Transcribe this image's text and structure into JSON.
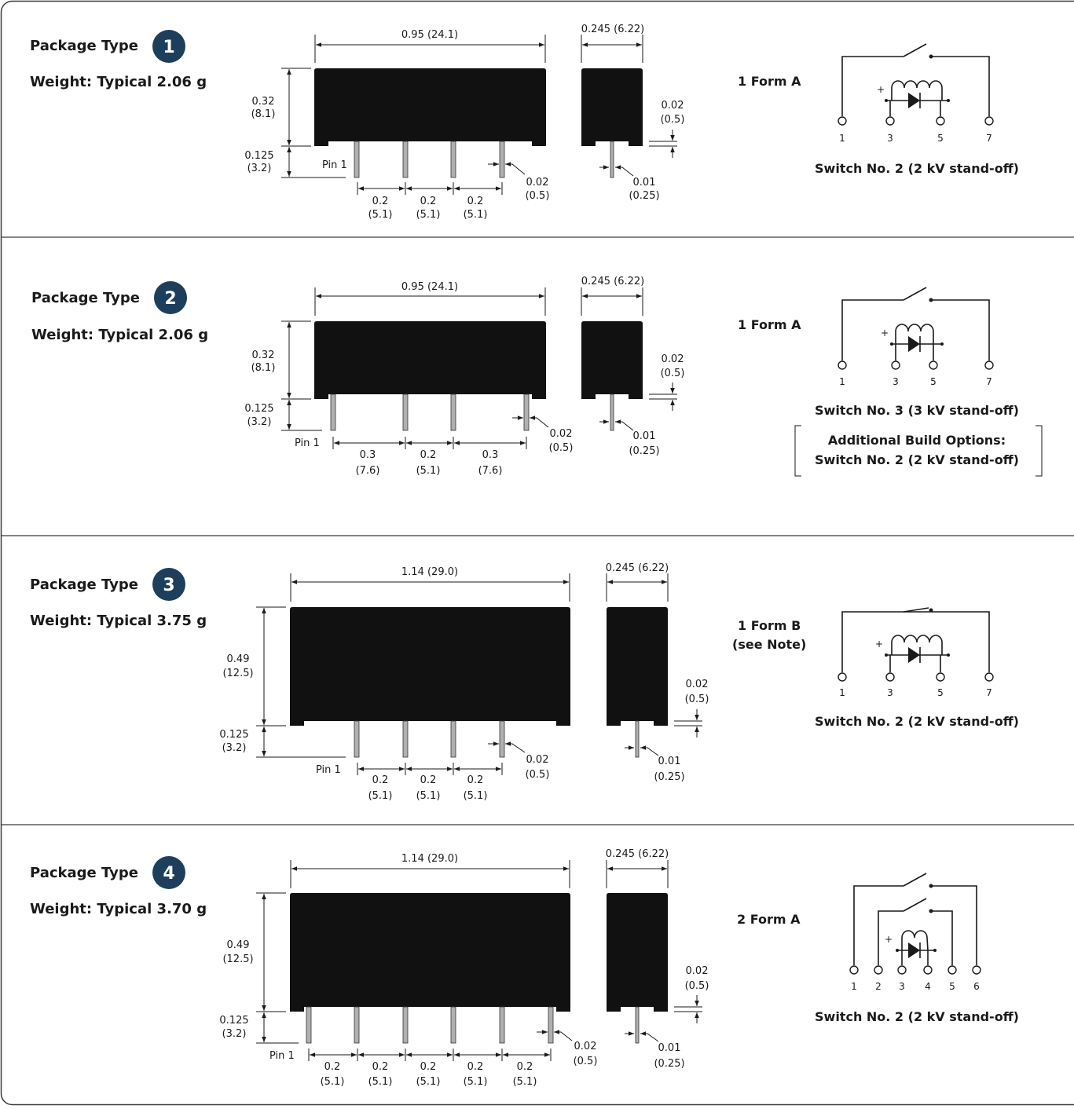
{
  "packages": [
    {
      "heading": "Package Type",
      "number": "1",
      "weight": "Weight: Typical 2.06 g",
      "dims": {
        "length": "0.95 (24.1)",
        "width": "0.245 (6.22)",
        "height_in": "0.32",
        "height_mm": "(8.1)",
        "lead_in": "0.125",
        "lead_mm": "(3.2)",
        "standoff_in": "0.02",
        "standoff_mm": "(0.5)",
        "pin_in": "0.02",
        "pin_mm": "(0.5)",
        "thick_in": "0.01",
        "thick_mm": "(0.25)",
        "pin1": "Pin 1"
      },
      "spacings": [
        {
          "in": "0.2",
          "mm": "(5.1)"
        },
        {
          "in": "0.2",
          "mm": "(5.1)"
        },
        {
          "in": "0.2",
          "mm": "(5.1)"
        }
      ],
      "form": [
        "1 Form A"
      ],
      "pins": [
        "1",
        "3",
        "5",
        "7"
      ],
      "switch": "Switch No. 2 (2 kV stand-off)",
      "options": []
    },
    {
      "heading": "Package Type",
      "number": "2",
      "weight": "Weight: Typical 2.06 g",
      "dims": {
        "length": "0.95 (24.1)",
        "width": "0.245 (6.22)",
        "height_in": "0.32",
        "height_mm": "(8.1)",
        "lead_in": "0.125",
        "lead_mm": "(3.2)",
        "standoff_in": "0.02",
        "standoff_mm": "(0.5)",
        "pin_in": "0.02",
        "pin_mm": "(0.5)",
        "thick_in": "0.01",
        "thick_mm": "(0.25)",
        "pin1": "Pin 1"
      },
      "spacings": [
        {
          "in": "0.3",
          "mm": "(7.6)"
        },
        {
          "in": "0.2",
          "mm": "(5.1)"
        },
        {
          "in": "0.3",
          "mm": "(7.6)"
        }
      ],
      "form": [
        "1 Form A"
      ],
      "pins": [
        "1",
        "3",
        "5",
        "7"
      ],
      "switch": "Switch No. 3 (3 kV stand-off)",
      "options": [
        "Additional Build Options:",
        "Switch No. 2 (2 kV stand-off)"
      ]
    },
    {
      "heading": "Package Type",
      "number": "3",
      "weight": "Weight: Typical 3.75 g",
      "dims": {
        "length": "1.14 (29.0)",
        "width": "0.245 (6.22)",
        "height_in": "0.49",
        "height_mm": "(12.5)",
        "lead_in": "0.125",
        "lead_mm": "(3.2)",
        "standoff_in": "0.02",
        "standoff_mm": "(0.5)",
        "pin_in": "0.02",
        "pin_mm": "(0.5)",
        "thick_in": "0.01",
        "thick_mm": "(0.25)",
        "pin1": "Pin 1"
      },
      "spacings": [
        {
          "in": "0.2",
          "mm": "(5.1)"
        },
        {
          "in": "0.2",
          "mm": "(5.1)"
        },
        {
          "in": "0.2",
          "mm": "(5.1)"
        }
      ],
      "form": [
        "1 Form B",
        "(see Note)"
      ],
      "pins": [
        "1",
        "3",
        "5",
        "7"
      ],
      "switch": "Switch No. 2 (2 kV stand-off)",
      "options": []
    },
    {
      "heading": "Package Type",
      "number": "4",
      "weight": "Weight: Typical 3.70 g",
      "dims": {
        "length": "1.14 (29.0)",
        "width": "0.245 (6.22)",
        "height_in": "0.49",
        "height_mm": "(12.5)",
        "lead_in": "0.125",
        "lead_mm": "(3.2)",
        "standoff_in": "0.02",
        "standoff_mm": "(0.5)",
        "pin_in": "0.02",
        "pin_mm": "(0.5)",
        "thick_in": "0.01",
        "thick_mm": "(0.25)",
        "pin1": "Pin 1"
      },
      "spacings": [
        {
          "in": "0.2",
          "mm": "(5.1)"
        },
        {
          "in": "0.2",
          "mm": "(5.1)"
        },
        {
          "in": "0.2",
          "mm": "(5.1)"
        },
        {
          "in": "0.2",
          "mm": "(5.1)"
        },
        {
          "in": "0.2",
          "mm": "(5.1)"
        }
      ],
      "form": [
        "2 Form A"
      ],
      "pins": [
        "1",
        "2",
        "3",
        "4",
        "5",
        "6"
      ],
      "switch": "Switch No. 2 (2 kV stand-off)",
      "options": []
    }
  ],
  "colors": {
    "badge": "#1e3f5c",
    "body": "#111111",
    "pin": "#b0b0b0",
    "frame": "#3a3a3a"
  }
}
